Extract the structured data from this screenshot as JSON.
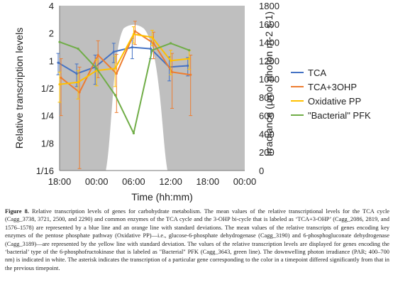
{
  "chart_data": {
    "type": "line",
    "xlabel": "Time (hh:mm)",
    "ylabel": "Relative transcription levels",
    "y2label": "Irradiance (µmol photon m-2 s-1)",
    "x_ticks": [
      "18:00",
      "00:00",
      "06:00",
      "12:00",
      "18:00",
      "00:00"
    ],
    "x_tick_hours": [
      0,
      6,
      12,
      18,
      24,
      30
    ],
    "y_ticks": [
      "4",
      "2",
      "1",
      "1/2",
      "1/4",
      "1/8",
      "1/16"
    ],
    "y_tick_values": [
      4,
      2,
      1,
      0.5,
      0.25,
      0.125,
      0.0625
    ],
    "y_scale": "log2",
    "ylim": [
      0.0625,
      4
    ],
    "xlim_hours": [
      0,
      30
    ],
    "y2_ticks": [
      "1800",
      "1600",
      "1400",
      "1200",
      "1000",
      "800",
      "600",
      "400",
      "200",
      "0"
    ],
    "y2lim": [
      0,
      1800
    ],
    "legend_position": "right",
    "colors": {
      "TCA": "#4472C4",
      "TCA+3OHP": "#ED7D31",
      "Oxidative PP": "#FFC000",
      "Bacterial PFK": "#70AD47",
      "irradiance": "#BFBFBF",
      "irradiance_window": "#FFFFFF"
    },
    "series": [
      {
        "name": "TCA",
        "hours": [
          0,
          3,
          6,
          9,
          12,
          15,
          18,
          21
        ],
        "values": [
          0.95,
          0.72,
          0.85,
          1.25,
          1.4,
          1.35,
          0.85,
          0.88
        ],
        "err": [
          0.25,
          0.2,
          0.3,
          0.3,
          0.35,
          0.3,
          0.25,
          0.2
        ]
      },
      {
        "name": "TCA+3OHP",
        "hours": [
          0,
          3,
          6,
          9,
          12,
          15,
          18,
          21
        ],
        "values": [
          0.65,
          0.45,
          1.15,
          0.72,
          2.1,
          1.55,
          0.75,
          0.7
        ],
        "err": [
          0.4,
          0.4,
          0.5,
          0.45,
          0.6,
          0.5,
          0.45,
          0.45
        ]
      },
      {
        "name": "Oxidative PP",
        "hours": [
          0,
          3,
          6,
          9,
          12,
          15,
          18,
          21
        ],
        "values": [
          0.55,
          0.58,
          0.78,
          0.82,
          1.95,
          1.8,
          1.0,
          1.05
        ],
        "err": [
          0.2,
          0.2,
          0.25,
          0.3,
          0.4,
          0.35,
          0.3,
          0.25
        ]
      },
      {
        "name": "\"Bacterial\" PFK",
        "hours": [
          0,
          3,
          6,
          9,
          12,
          15,
          18,
          21
        ],
        "values": [
          1.6,
          1.35,
          0.82,
          0.42,
          0.16,
          1.3,
          1.55,
          1.3
        ],
        "err": [
          0,
          0,
          0,
          0,
          0,
          0,
          0,
          0
        ]
      }
    ],
    "irradiance": {
      "label": "PAR",
      "hours": [
        0,
        30
      ],
      "values": [
        1800,
        1800
      ],
      "light_window_hours": [
        7.5,
        17.5
      ],
      "light_window_peak_hours": 12,
      "light_window_peak_value": 1600
    }
  },
  "caption": {
    "label": "Figure 8.",
    "text": "Relative transcription levels of genes for carbohydrate metabolism. The mean values of the relative transcriptional levels for the TCA cycle (Cagg_3738, 3721, 2500, and 2290) and common enzymes of the TCA cycle and the 3-OHP bi-cycle that is labeled as ‘TCA+3-OHP’ (Cagg_2086, 2819, and 1576–1578) are represented by a blue line and an orange line with standard deviations. The mean values of the relative transcripts of genes encoding key enzymes of the pentose phosphate pathway (Oxidative PP)—i.e., glucose-6-phosphate dehydrogenase (Cagg_3190) and 6-phosphogluconate dehydrogenase (Cagg_3189)—are represented by the yellow line with standard deviation. The values of the relative transcription levels are displayed for genes encoding the ‘bacterial’ type of the 6-phosphofructokinase that is labeled as \"Bacterial\" PFK (Cagg_3643, green line). The downwelling photon irradiance (PAR; 400–700 nm) is indicated in white. The asterisk indicates the transcription of a particular gene corresponding to the color in a timepoint differed significantly from that in the previous timepoint."
  }
}
